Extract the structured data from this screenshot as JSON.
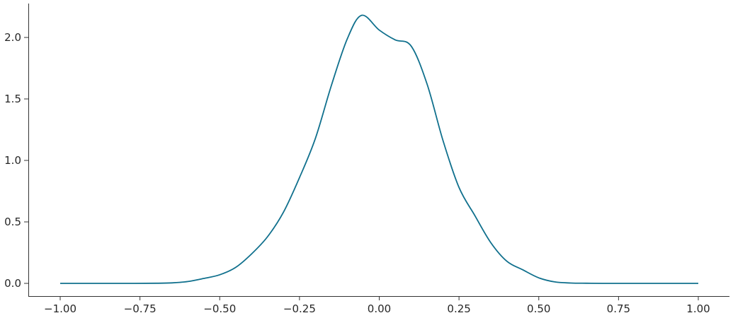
{
  "chart_data": {
    "type": "line",
    "title": "",
    "xlabel": "",
    "ylabel": "",
    "xlim": [
      -1.1,
      1.1
    ],
    "ylim": [
      -0.1,
      2.28
    ],
    "grid": false,
    "line_color": "#10708d",
    "x_ticks": [
      -1.0,
      -0.75,
      -0.5,
      -0.25,
      0.0,
      0.25,
      0.5,
      0.75,
      1.0
    ],
    "x_tick_labels": [
      "−1.00",
      "−0.75",
      "−0.50",
      "−0.25",
      "0.00",
      "0.25",
      "0.50",
      "0.75",
      "1.00"
    ],
    "y_ticks": [
      0.0,
      0.5,
      1.0,
      1.5,
      2.0
    ],
    "y_tick_labels": [
      "0.0",
      "0.5",
      "1.0",
      "1.5",
      "2.0"
    ],
    "series": [
      {
        "x": [
          -1.0,
          -0.9,
          -0.8,
          -0.7,
          -0.65,
          -0.6,
          -0.55,
          -0.5,
          -0.45,
          -0.4,
          -0.35,
          -0.3,
          -0.25,
          -0.2,
          -0.15,
          -0.1,
          -0.055,
          0.0,
          0.05,
          0.1,
          0.15,
          0.2,
          0.25,
          0.3,
          0.35,
          0.4,
          0.45,
          0.5,
          0.55,
          0.6,
          0.65,
          0.7,
          0.8,
          0.9,
          1.0
        ],
        "y": [
          0,
          0,
          0,
          0.001,
          0.004,
          0.015,
          0.04,
          0.07,
          0.13,
          0.24,
          0.38,
          0.58,
          0.86,
          1.18,
          1.61,
          1.99,
          2.18,
          2.06,
          1.98,
          1.93,
          1.62,
          1.16,
          0.78,
          0.55,
          0.33,
          0.18,
          0.11,
          0.045,
          0.012,
          0.003,
          0.001,
          0,
          0,
          0,
          0
        ]
      }
    ]
  }
}
